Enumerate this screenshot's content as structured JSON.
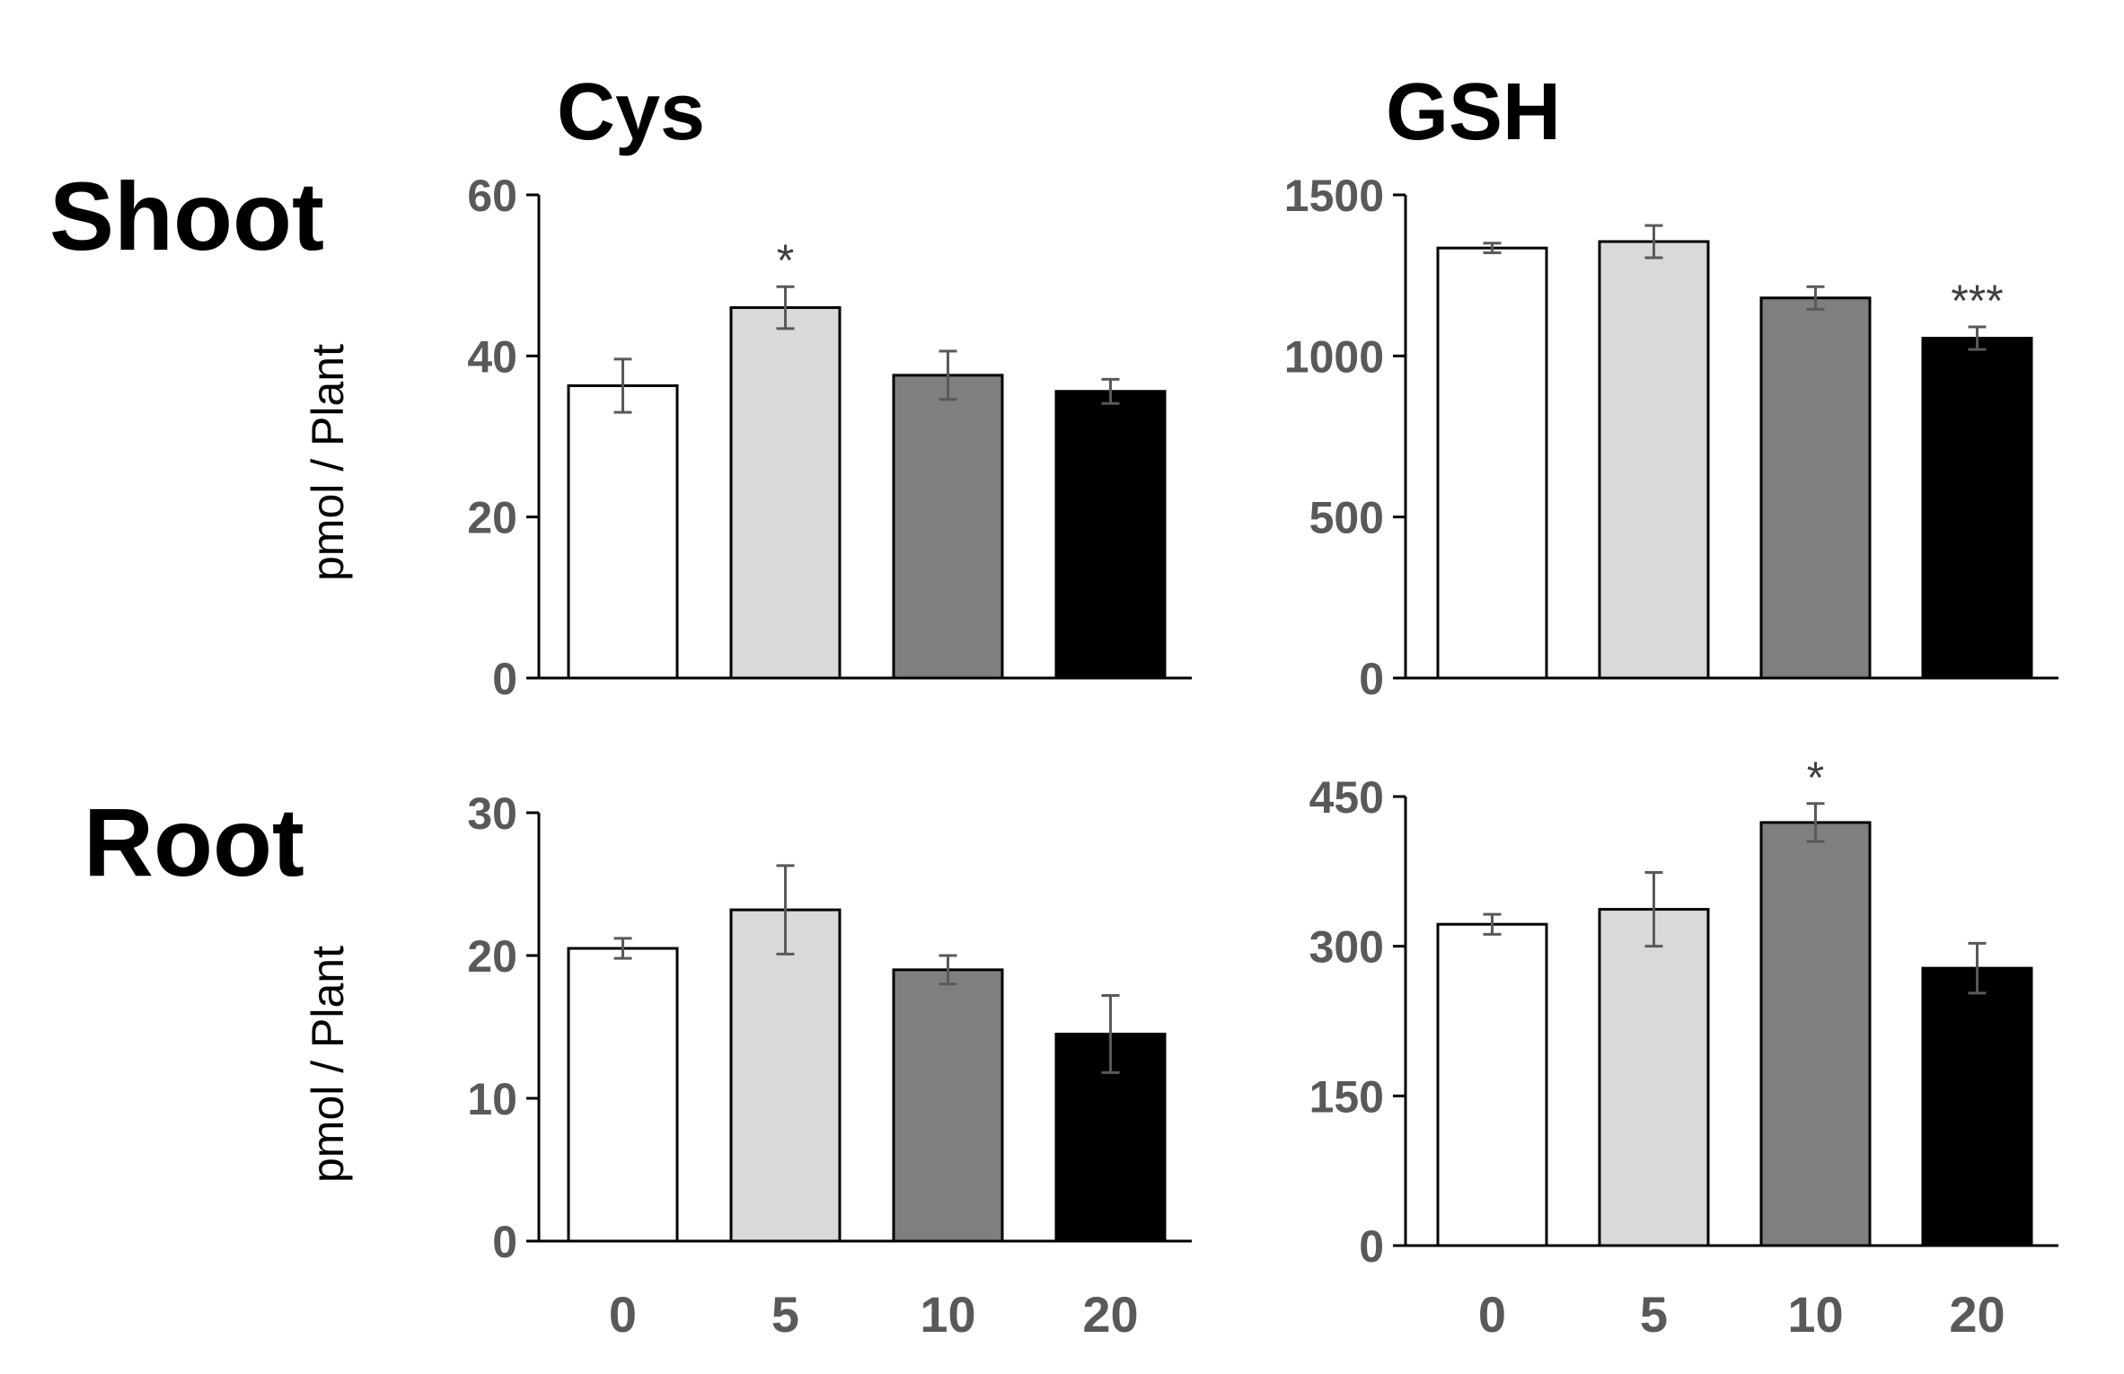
{
  "titles": {
    "col_cys": "Cys",
    "col_gsh": "GSH",
    "row_shoot": "Shoot",
    "row_root": "Root"
  },
  "colors": {
    "bar_fills": [
      "#ffffff",
      "#d9d9d9",
      "#7f7f7f",
      "#000000"
    ],
    "bar_stroke": "#000000",
    "error_bar": "#595959",
    "tick_text": "#595959"
  },
  "chart_data": [
    {
      "id": "shoot_cys",
      "type": "bar",
      "title": "Cys",
      "row": "Shoot",
      "xlabel": "",
      "ylabel": "pmol / Plant",
      "categories": [
        "0",
        "5",
        "10",
        "20"
      ],
      "values": [
        36.3,
        46.0,
        37.6,
        35.6
      ],
      "errors": [
        3.3,
        2.6,
        3.0,
        1.5
      ],
      "significance": [
        "",
        "*",
        "",
        ""
      ],
      "ylim": [
        0,
        60
      ],
      "yticks": [
        0,
        20,
        40,
        60
      ],
      "show_xticks": false
    },
    {
      "id": "shoot_gsh",
      "type": "bar",
      "title": "GSH",
      "row": "Shoot",
      "xlabel": "",
      "ylabel": "",
      "categories": [
        "0",
        "5",
        "10",
        "20"
      ],
      "values": [
        1335,
        1355,
        1180,
        1055
      ],
      "errors": [
        15,
        50,
        35,
        35
      ],
      "significance": [
        "",
        "",
        "",
        "***"
      ],
      "ylim": [
        0,
        1500
      ],
      "yticks": [
        0,
        500,
        1000,
        1500
      ],
      "show_xticks": false
    },
    {
      "id": "root_cys",
      "type": "bar",
      "title": "",
      "row": "Root",
      "xlabel": "",
      "ylabel": "pmol / Plant",
      "categories": [
        "0",
        "5",
        "10",
        "20"
      ],
      "values": [
        20.5,
        23.2,
        19.0,
        14.5
      ],
      "errors": [
        0.7,
        3.1,
        1.0,
        2.7
      ],
      "significance": [
        "",
        "",
        "",
        ""
      ],
      "ylim": [
        0,
        30
      ],
      "yticks": [
        0,
        10,
        20,
        30
      ],
      "show_xticks": true
    },
    {
      "id": "root_gsh",
      "type": "bar",
      "title": "",
      "row": "Root",
      "xlabel": "",
      "ylabel": "",
      "categories": [
        "0",
        "5",
        "10",
        "20"
      ],
      "values": [
        322,
        337,
        424,
        278
      ],
      "errors": [
        10,
        37,
        19,
        25
      ],
      "significance": [
        "",
        "",
        "*",
        ""
      ],
      "ylim": [
        0,
        450
      ],
      "yticks": [
        0,
        150,
        300,
        450
      ],
      "show_xticks": true
    }
  ]
}
